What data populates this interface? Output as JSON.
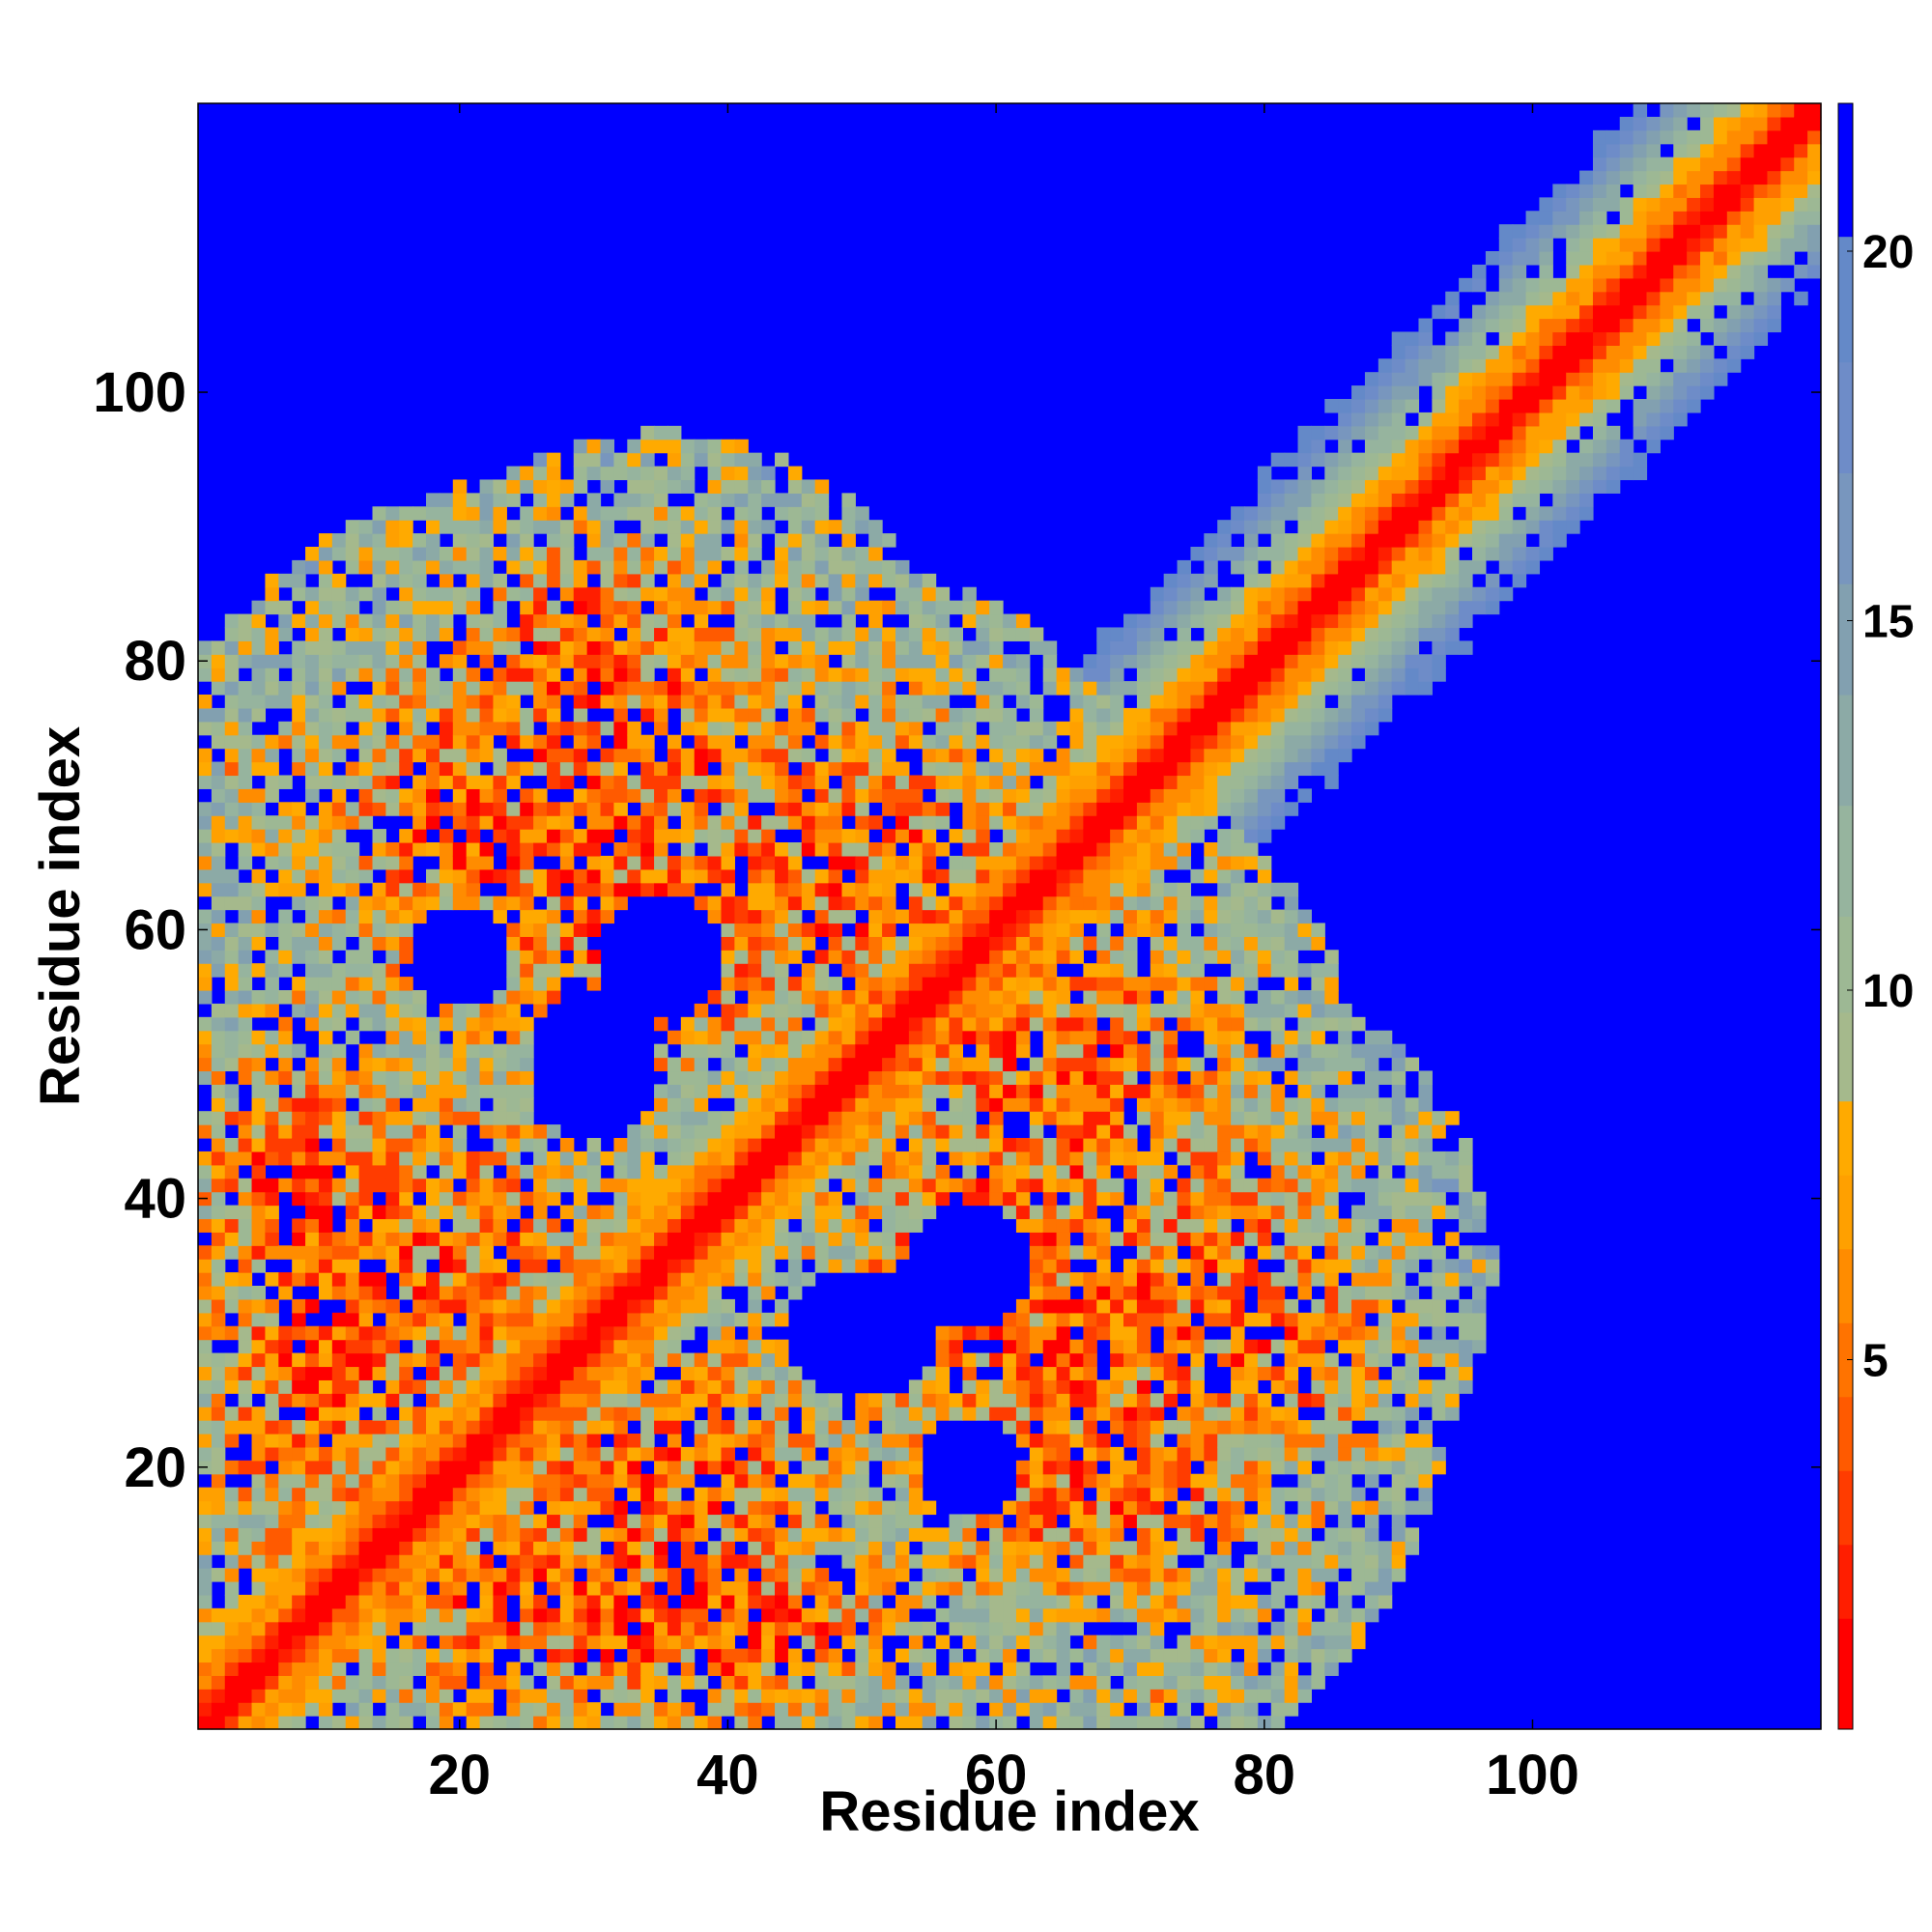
{
  "chart_data": {
    "type": "heatmap",
    "title": "",
    "xlabel": "Residue index",
    "ylabel": "Residue index",
    "n_residues": 121,
    "xlim": [
      1,
      121
    ],
    "ylim": [
      1,
      121
    ],
    "x_ticks": [
      20,
      40,
      60,
      80,
      100
    ],
    "y_ticks": [
      20,
      40,
      60,
      80,
      100
    ],
    "colorbar": {
      "ticks": [
        5,
        10,
        15,
        20
      ],
      "range": [
        0,
        22
      ],
      "levels": [
        {
          "max": 1.5,
          "color": "#ff0000"
        },
        {
          "max": 2.5,
          "color": "#ff1e00"
        },
        {
          "max": 3.5,
          "color": "#ff3c00"
        },
        {
          "max": 4.5,
          "color": "#ff5a00"
        },
        {
          "max": 5.5,
          "color": "#ff7300"
        },
        {
          "max": 6.5,
          "color": "#ff8c00"
        },
        {
          "max": 7.5,
          "color": "#ffa000"
        },
        {
          "max": 8.5,
          "color": "#ffaa00"
        },
        {
          "max": 9.7,
          "color": "#a5b98c"
        },
        {
          "max": 11.0,
          "color": "#9db894"
        },
        {
          "max": 12.5,
          "color": "#96b49e"
        },
        {
          "max": 14.0,
          "color": "#8caaa6"
        },
        {
          "max": 15.5,
          "color": "#82a0b0"
        },
        {
          "max": 17.0,
          "color": "#7896be"
        },
        {
          "max": 18.5,
          "color": "#6e8cc8"
        },
        {
          "max": 20.2,
          "color": "#6489c8"
        },
        {
          "max": 999,
          "color": "#0000ff"
        }
      ]
    },
    "contact_blobs": [
      {
        "x": 28,
        "y": 67,
        "sx": 13,
        "sy": 11,
        "sep": 4.5
      },
      {
        "x": 67,
        "y": 28,
        "sx": 11,
        "sy": 13,
        "sep": 4.5
      },
      {
        "x": 17,
        "y": 35,
        "sx": 9,
        "sy": 10,
        "sep": 4.5
      },
      {
        "x": 35,
        "y": 17,
        "sx": 10,
        "sy": 9,
        "sep": 4.5
      },
      {
        "x": 30,
        "y": 10,
        "sx": 13,
        "sy": 6,
        "sep": 4.0
      },
      {
        "x": 10,
        "y": 30,
        "sx": 6,
        "sy": 13,
        "sep": 4.0
      },
      {
        "x": 48,
        "y": 65,
        "sx": 10,
        "sy": 9,
        "sep": 4.5
      },
      {
        "x": 65,
        "y": 48,
        "sx": 9,
        "sy": 10,
        "sep": 4.5
      },
      {
        "x": 75,
        "y": 35,
        "sx": 9,
        "sy": 9,
        "sep": 5.0
      },
      {
        "x": 35,
        "y": 75,
        "sx": 9,
        "sy": 9,
        "sep": 5.0
      },
      {
        "x": 68,
        "y": 20,
        "sx": 9,
        "sy": 6,
        "sep": 4.0
      },
      {
        "x": 20,
        "y": 68,
        "sx": 6,
        "sy": 9,
        "sep": 4.0
      },
      {
        "x": 42,
        "y": 8,
        "sx": 5,
        "sy": 4,
        "sep": 3.0
      },
      {
        "x": 8,
        "y": 42,
        "sx": 4,
        "sy": 5,
        "sep": 3.0
      },
      {
        "x": 57,
        "y": 54,
        "sx": 7,
        "sy": 7,
        "sep": 5.0
      },
      {
        "x": 80,
        "y": 30,
        "sx": 6,
        "sy": 6,
        "sep": 4.0
      },
      {
        "x": 30,
        "y": 80,
        "sx": 6,
        "sy": 6,
        "sep": 4.0
      },
      {
        "x": 60,
        "y": 35,
        "sx": 6,
        "sy": 6,
        "sep": 3.0
      },
      {
        "x": 35,
        "y": 60,
        "sx": 6,
        "sy": 6,
        "sep": 3.0
      }
    ],
    "isolated_contacts": [
      {
        "x": 3,
        "y": 72,
        "v": 4
      },
      {
        "x": 72,
        "y": 3,
        "v": 4
      }
    ],
    "holes": [
      {
        "x": 50,
        "y": 30,
        "sx": 6,
        "sy": 5
      },
      {
        "x": 30,
        "y": 50,
        "sx": 5,
        "sy": 6
      },
      {
        "x": 35,
        "y": 58,
        "sx": 5,
        "sy": 5
      },
      {
        "x": 58,
        "y": 35,
        "sx": 5,
        "sy": 5
      },
      {
        "x": 58,
        "y": 20,
        "sx": 4,
        "sy": 4
      },
      {
        "x": 20,
        "y": 58,
        "sx": 4,
        "sy": 4
      }
    ]
  }
}
